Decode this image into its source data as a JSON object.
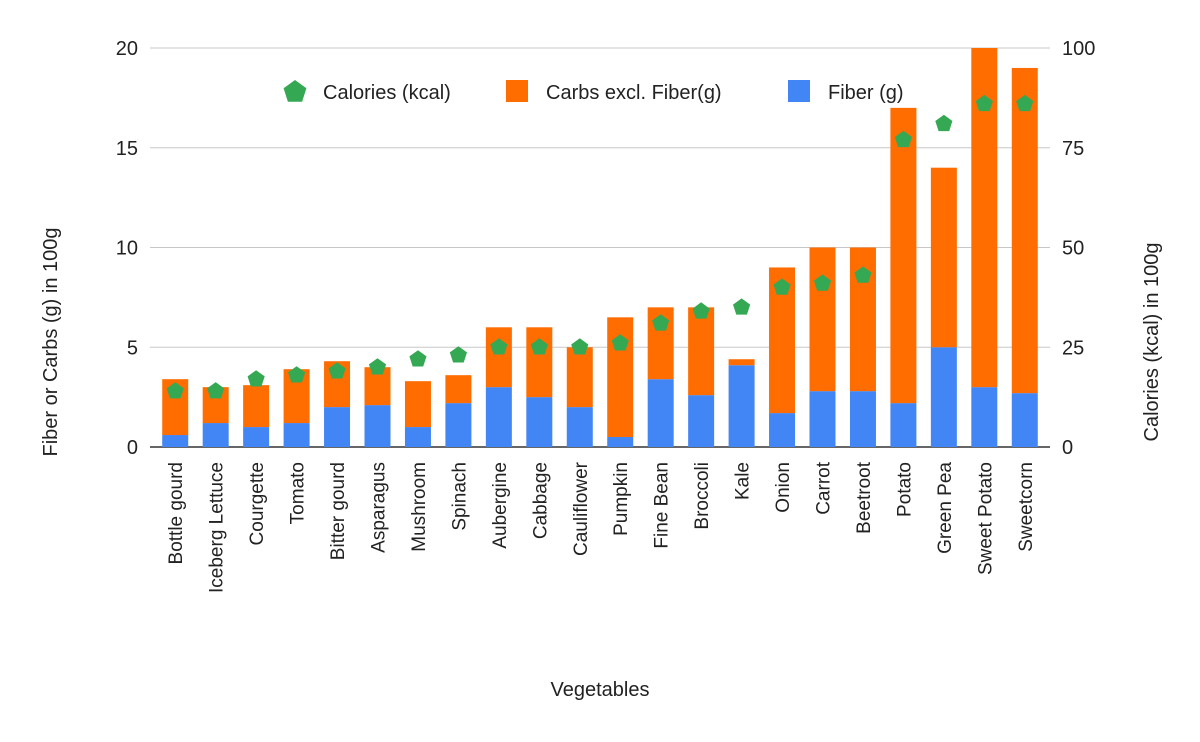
{
  "chart_data": {
    "type": "bar",
    "stacked": true,
    "xlabel": "Vegetables",
    "ylabel": "Fiber or Carbs (g) in 100g",
    "y2label": "Calories (kcal) in 100g",
    "ylim": [
      0,
      20
    ],
    "y2lim": [
      0,
      100
    ],
    "yticks": [
      "0",
      "5",
      "10",
      "15",
      "20"
    ],
    "y2ticks": [
      "0",
      "25",
      "50",
      "75",
      "100"
    ],
    "grid": true,
    "legend_position": "top",
    "categories": [
      "Bottle gourd",
      "Iceberg Lettuce",
      "Courgette",
      "Tomato",
      "Bitter gourd",
      "Asparagus",
      "Mushroom",
      "Spinach",
      "Aubergine",
      "Cabbage",
      "Cauliflower",
      "Pumpkin",
      "Fine Bean",
      "Broccoli",
      "Kale",
      "Onion",
      "Carrot",
      "Beetroot",
      "Potato",
      "Green Pea",
      "Sweet Potato",
      "Sweetcorn"
    ],
    "series": [
      {
        "name": "Fiber (g)",
        "type": "bar",
        "axis": "left",
        "color": "#4285F4",
        "values": [
          0.6,
          1.2,
          1.0,
          1.2,
          2.0,
          2.1,
          1.0,
          2.2,
          3.0,
          2.5,
          2.0,
          0.5,
          3.4,
          2.6,
          4.1,
          1.7,
          2.8,
          2.8,
          2.2,
          5.0,
          3.0,
          2.7
        ]
      },
      {
        "name": "Carbs excl. Fiber(g)",
        "type": "bar",
        "axis": "left",
        "color": "#FF6D01",
        "values": [
          2.8,
          1.8,
          2.1,
          2.7,
          2.3,
          1.9,
          2.3,
          1.4,
          3.0,
          3.5,
          3.0,
          6.0,
          3.6,
          4.4,
          0.3,
          7.3,
          7.2,
          7.2,
          14.8,
          9.0,
          17.0,
          16.3
        ]
      },
      {
        "name": "Calories (kcal)",
        "type": "scatter",
        "axis": "right",
        "color": "#34A853",
        "values": [
          14,
          14,
          17,
          18,
          19,
          20,
          22,
          23,
          25,
          25,
          25,
          26,
          31,
          34,
          35,
          40,
          41,
          43,
          77,
          81,
          86,
          86
        ]
      }
    ],
    "legend": [
      "Calories (kcal)",
      "Carbs excl. Fiber(g)",
      "Fiber (g)"
    ]
  }
}
